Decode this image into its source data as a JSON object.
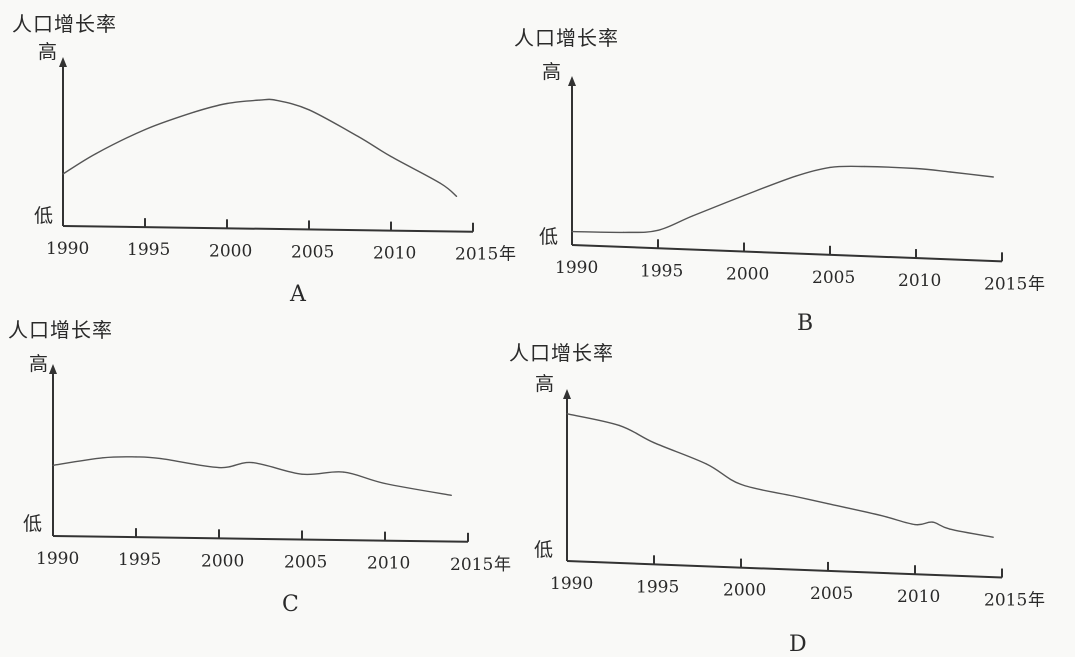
{
  "chart_data": [
    {
      "id": "A",
      "type": "line",
      "panel_label": "A",
      "ylabel": "人口增长率",
      "y_high": "高",
      "y_low": "低",
      "x_unit": "年",
      "x_ticks": [
        "1990",
        "1995",
        "2000",
        "2005",
        "2010",
        "2015"
      ],
      "xlim": [
        1990,
        2015
      ],
      "ylim": [
        0,
        100
      ],
      "x": [
        1990,
        1992,
        1995,
        1998,
        2000,
        2002,
        2003,
        2005,
        2008,
        2010,
        2013,
        2014
      ],
      "y": [
        40,
        56,
        75,
        89,
        96,
        99,
        99,
        92,
        72,
        57,
        37,
        27
      ]
    },
    {
      "id": "B",
      "type": "line",
      "panel_label": "B",
      "ylabel": "人口增长率",
      "y_high": "高",
      "y_low": "低",
      "x_unit": "年",
      "x_ticks": [
        "1990",
        "1995",
        "2000",
        "2005",
        "2010",
        "2015"
      ],
      "xlim": [
        1990,
        2015
      ],
      "ylim": [
        0,
        100
      ],
      "x": [
        1990,
        1993,
        1995,
        1997,
        2000,
        2003,
        2005,
        2007,
        2010,
        2012,
        2014.5
      ],
      "y": [
        12,
        13,
        16,
        30,
        50,
        69,
        78,
        80,
        80,
        78,
        75
      ]
    },
    {
      "id": "C",
      "type": "line",
      "panel_label": "C",
      "ylabel": "人口增长率",
      "y_high": "高",
      "y_low": "低",
      "x_unit": "年",
      "x_ticks": [
        "1990",
        "1995",
        "2000",
        "2005",
        "2010",
        "2015"
      ],
      "xlim": [
        1990,
        2015
      ],
      "ylim": [
        0,
        100
      ],
      "x": [
        1990,
        1993,
        1995,
        1996.5,
        2000,
        2002,
        2005,
        2007.5,
        2010,
        2014
      ],
      "y": [
        52,
        58,
        59,
        58,
        52,
        56,
        48,
        50,
        42,
        34
      ]
    },
    {
      "id": "D",
      "type": "line",
      "panel_label": "D",
      "ylabel": "人口增长率",
      "y_high": "高",
      "y_low": "低",
      "x_unit": "年",
      "x_ticks": [
        "1990",
        "1995",
        "2000",
        "2005",
        "2010",
        "2015"
      ],
      "xlim": [
        1990,
        2015
      ],
      "ylim": [
        0,
        100
      ],
      "x": [
        1990,
        1993,
        1995,
        1998,
        2000,
        2003,
        2005,
        2008,
        2010,
        2011,
        2012,
        2014.5
      ],
      "y": [
        92,
        86,
        76,
        64,
        52,
        46,
        42,
        36,
        31,
        33,
        29,
        25
      ]
    }
  ]
}
